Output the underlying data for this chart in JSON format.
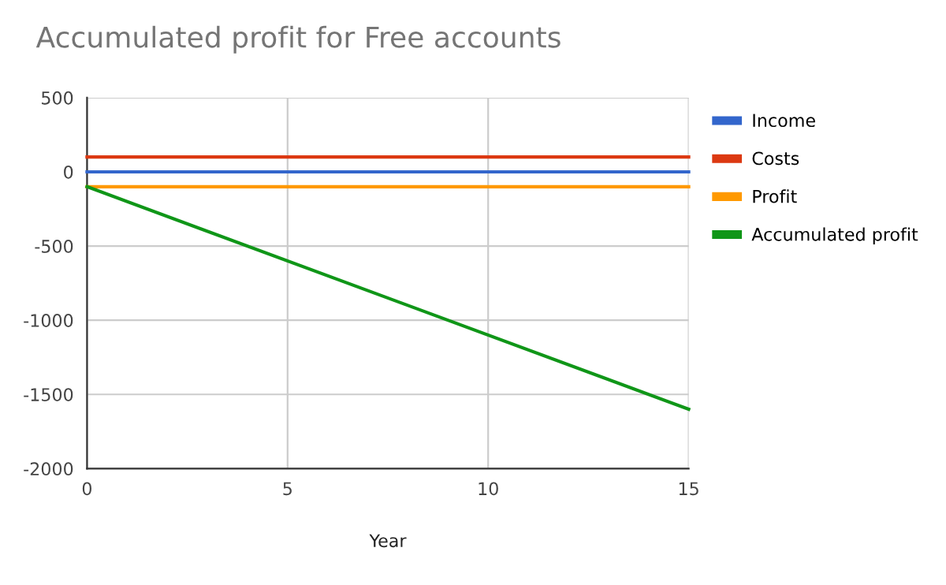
{
  "chart_data": {
    "type": "line",
    "title": "Accumulated profit for Free accounts",
    "xlabel": "Year",
    "x": [
      0,
      15
    ],
    "series": [
      {
        "name": "Income",
        "color": "#3366cc",
        "values": [
          0,
          0
        ]
      },
      {
        "name": "Costs",
        "color": "#dc3912",
        "values": [
          100,
          100
        ]
      },
      {
        "name": "Profit",
        "color": "#ff9900",
        "values": [
          -100,
          -100
        ]
      },
      {
        "name": "Accumulated profit",
        "color": "#109618",
        "values": [
          -100,
          -1600
        ]
      }
    ],
    "xlim": [
      0,
      15
    ],
    "xticks": [
      0,
      5,
      10,
      15
    ],
    "ylim": [
      -2000,
      500
    ],
    "yticks": [
      -2000,
      -1500,
      -1000,
      -500,
      0,
      500
    ],
    "grid": true,
    "legend": "right",
    "marker": "none",
    "line_style": "solid"
  }
}
